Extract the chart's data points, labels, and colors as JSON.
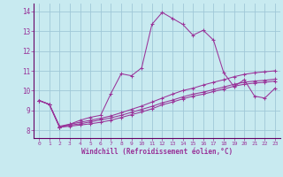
{
  "xlabel": "Windchill (Refroidissement éolien,°C)",
  "background_color": "#c8eaf0",
  "grid_color": "#a0c8d8",
  "line_color": "#993399",
  "spine_color": "#660066",
  "xlim": [
    -0.5,
    23.5
  ],
  "ylim": [
    7.6,
    14.4
  ],
  "yticks": [
    8,
    9,
    10,
    11,
    12,
    13,
    14
  ],
  "xticks": [
    0,
    1,
    2,
    3,
    4,
    5,
    6,
    7,
    8,
    9,
    10,
    11,
    12,
    13,
    14,
    15,
    16,
    17,
    18,
    19,
    20,
    21,
    22,
    23
  ],
  "series": [
    [
      9.5,
      9.3,
      8.2,
      8.3,
      8.5,
      8.65,
      8.75,
      9.85,
      10.85,
      10.75,
      11.15,
      13.35,
      13.95,
      13.65,
      13.35,
      12.8,
      13.05,
      12.55,
      10.9,
      10.2,
      10.55,
      9.72,
      9.62,
      10.12
    ],
    [
      9.5,
      9.3,
      8.15,
      8.3,
      8.4,
      8.5,
      8.6,
      8.72,
      8.88,
      9.05,
      9.22,
      9.42,
      9.62,
      9.82,
      10.0,
      10.12,
      10.28,
      10.42,
      10.55,
      10.7,
      10.82,
      10.9,
      10.95,
      11.0
    ],
    [
      9.5,
      9.3,
      8.15,
      8.25,
      8.32,
      8.42,
      8.52,
      8.62,
      8.75,
      8.9,
      9.05,
      9.2,
      9.38,
      9.52,
      9.68,
      9.82,
      9.92,
      10.05,
      10.18,
      10.32,
      10.42,
      10.48,
      10.52,
      10.58
    ],
    [
      9.5,
      9.3,
      8.15,
      8.2,
      8.26,
      8.32,
      8.4,
      8.5,
      8.64,
      8.78,
      8.92,
      9.08,
      9.28,
      9.42,
      9.58,
      9.72,
      9.82,
      9.95,
      10.08,
      10.22,
      10.32,
      10.38,
      10.42,
      10.48
    ]
  ]
}
